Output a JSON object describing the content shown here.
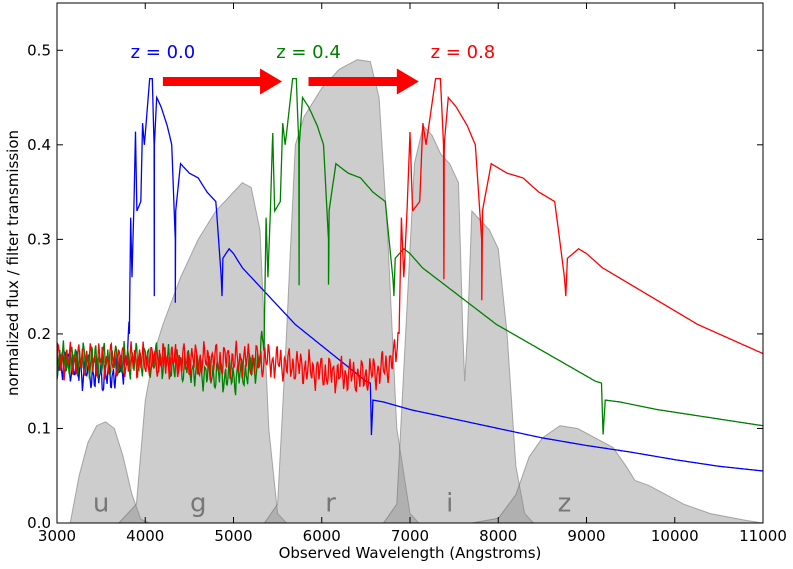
{
  "chart_data": {
    "type": "line",
    "xlabel": "Observed Wavelength (Angstroms)",
    "ylabel": "normalized flux / filter transmission",
    "xlim": [
      3000,
      11000
    ],
    "ylim": [
      0,
      0.55
    ],
    "xticks": [
      3000,
      4000,
      5000,
      6000,
      7000,
      8000,
      9000,
      10000,
      11000
    ],
    "yticks": [
      0.0,
      0.1,
      0.2,
      0.3,
      0.4,
      0.5
    ],
    "xtick_labels": [
      "3000",
      "4000",
      "5000",
      "6000",
      "7000",
      "8000",
      "9000",
      "10000",
      "11000"
    ],
    "ytick_labels": [
      "0.0",
      "0.1",
      "0.2",
      "0.3",
      "0.4",
      "0.5"
    ],
    "grid": false,
    "filters": [
      {
        "name": "u",
        "label_x": 3500,
        "points": [
          [
            3000,
            0
          ],
          [
            3150,
            0
          ],
          [
            3250,
            0.05
          ],
          [
            3350,
            0.085
          ],
          [
            3450,
            0.103
          ],
          [
            3550,
            0.107
          ],
          [
            3650,
            0.1
          ],
          [
            3750,
            0.07
          ],
          [
            3850,
            0.03
          ],
          [
            3950,
            0.004
          ],
          [
            4050,
            0
          ]
        ]
      },
      {
        "name": "g",
        "label_x": 4600,
        "points": [
          [
            3700,
            0
          ],
          [
            3900,
            0.02
          ],
          [
            4000,
            0.13
          ],
          [
            4100,
            0.18
          ],
          [
            4200,
            0.21
          ],
          [
            4400,
            0.26
          ],
          [
            4600,
            0.3
          ],
          [
            4800,
            0.33
          ],
          [
            5000,
            0.35
          ],
          [
            5100,
            0.36
          ],
          [
            5200,
            0.355
          ],
          [
            5300,
            0.31
          ],
          [
            5400,
            0.1
          ],
          [
            5500,
            0.01
          ],
          [
            5600,
            0
          ]
        ]
      },
      {
        "name": "r",
        "label_x": 6100,
        "points": [
          [
            5350,
            0
          ],
          [
            5500,
            0.02
          ],
          [
            5600,
            0.2
          ],
          [
            5700,
            0.4
          ],
          [
            5800,
            0.43
          ],
          [
            6000,
            0.46
          ],
          [
            6200,
            0.48
          ],
          [
            6400,
            0.49
          ],
          [
            6550,
            0.488
          ],
          [
            6650,
            0.45
          ],
          [
            6750,
            0.3
          ],
          [
            6850,
            0.1
          ],
          [
            7000,
            0.01
          ],
          [
            7100,
            0
          ]
        ]
      },
      {
        "name": "i",
        "label_x": 7450,
        "points": [
          [
            6700,
            0
          ],
          [
            6850,
            0.02
          ],
          [
            6950,
            0.2
          ],
          [
            7050,
            0.38
          ],
          [
            7150,
            0.42
          ],
          [
            7250,
            0.41
          ],
          [
            7350,
            0.39
          ],
          [
            7450,
            0.38
          ],
          [
            7550,
            0.36
          ],
          [
            7600,
            0.2
          ],
          [
            7620,
            0.15
          ],
          [
            7650,
            0.2
          ],
          [
            7700,
            0.33
          ],
          [
            7800,
            0.32
          ],
          [
            7900,
            0.31
          ],
          [
            8000,
            0.29
          ],
          [
            8100,
            0.2
          ],
          [
            8200,
            0.06
          ],
          [
            8300,
            0.01
          ],
          [
            8400,
            0
          ]
        ]
      },
      {
        "name": "z",
        "label_x": 8750,
        "points": [
          [
            7700,
            0
          ],
          [
            8000,
            0.005
          ],
          [
            8200,
            0.03
          ],
          [
            8350,
            0.07
          ],
          [
            8500,
            0.09
          ],
          [
            8700,
            0.103
          ],
          [
            8900,
            0.1
          ],
          [
            9100,
            0.09
          ],
          [
            9300,
            0.08
          ],
          [
            9450,
            0.06
          ],
          [
            9550,
            0.045
          ],
          [
            9700,
            0.04
          ],
          [
            9900,
            0.03
          ],
          [
            10100,
            0.02
          ],
          [
            10400,
            0.01
          ],
          [
            10800,
            0.003
          ],
          [
            11000,
            0
          ]
        ]
      }
    ],
    "series": [
      {
        "name": "z = 0.0",
        "color": "#0000ff",
        "redshift": 0.0
      },
      {
        "name": "z = 0.4",
        "color": "#008000",
        "redshift": 0.4
      },
      {
        "name": "z = 0.8",
        "color": "#ff0000",
        "redshift": 0.8
      }
    ],
    "rest_spectrum": [
      [
        3000,
        0.172
      ],
      [
        3100,
        0.168
      ],
      [
        3200,
        0.165
      ],
      [
        3300,
        0.16
      ],
      [
        3400,
        0.158
      ],
      [
        3500,
        0.156
      ],
      [
        3600,
        0.155
      ],
      [
        3700,
        0.162
      ],
      [
        3780,
        0.17
      ],
      [
        3820,
        0.2
      ],
      [
        3835,
        0.323
      ],
      [
        3850,
        0.26
      ],
      [
        3870,
        0.33
      ],
      [
        3889,
        0.414
      ],
      [
        3905,
        0.33
      ],
      [
        3950,
        0.34
      ],
      [
        3970,
        0.423
      ],
      [
        3990,
        0.4
      ],
      [
        4050,
        0.47
      ],
      [
        4080,
        0.47
      ],
      [
        4100,
        0.4
      ],
      [
        4102,
        0.24
      ],
      [
        4104,
        0.4
      ],
      [
        4130,
        0.45
      ],
      [
        4180,
        0.44
      ],
      [
        4250,
        0.42
      ],
      [
        4300,
        0.4
      ],
      [
        4340,
        0.3
      ],
      [
        4341,
        0.233
      ],
      [
        4345,
        0.33
      ],
      [
        4400,
        0.38
      ],
      [
        4500,
        0.37
      ],
      [
        4600,
        0.365
      ],
      [
        4700,
        0.35
      ],
      [
        4800,
        0.34
      ],
      [
        4861,
        0.26
      ],
      [
        4870,
        0.24
      ],
      [
        4880,
        0.28
      ],
      [
        4950,
        0.29
      ],
      [
        5000,
        0.285
      ],
      [
        5100,
        0.27
      ],
      [
        5200,
        0.26
      ],
      [
        5300,
        0.25
      ],
      [
        5400,
        0.24
      ],
      [
        5500,
        0.23
      ],
      [
        5700,
        0.21
      ],
      [
        5900,
        0.195
      ],
      [
        6100,
        0.18
      ],
      [
        6300,
        0.165
      ],
      [
        6500,
        0.15
      ],
      [
        6550,
        0.148
      ],
      [
        6563,
        0.093
      ],
      [
        6580,
        0.13
      ],
      [
        6700,
        0.128
      ],
      [
        7000,
        0.12
      ],
      [
        7500,
        0.11
      ],
      [
        8000,
        0.1
      ],
      [
        8500,
        0.09
      ],
      [
        9000,
        0.082
      ],
      [
        9500,
        0.075
      ],
      [
        10000,
        0.067
      ],
      [
        10500,
        0.06
      ],
      [
        11000,
        0.055
      ]
    ]
  },
  "annotations": {
    "filter_labels": [
      "u",
      "g",
      "r",
      "i",
      "z"
    ],
    "arrows": [
      {
        "from_x": 4200,
        "to_x": 5550,
        "y": 0.467,
        "color": "#ff0000"
      },
      {
        "from_x": 5850,
        "to_x": 7100,
        "y": 0.467,
        "color": "#ff0000"
      }
    ]
  }
}
